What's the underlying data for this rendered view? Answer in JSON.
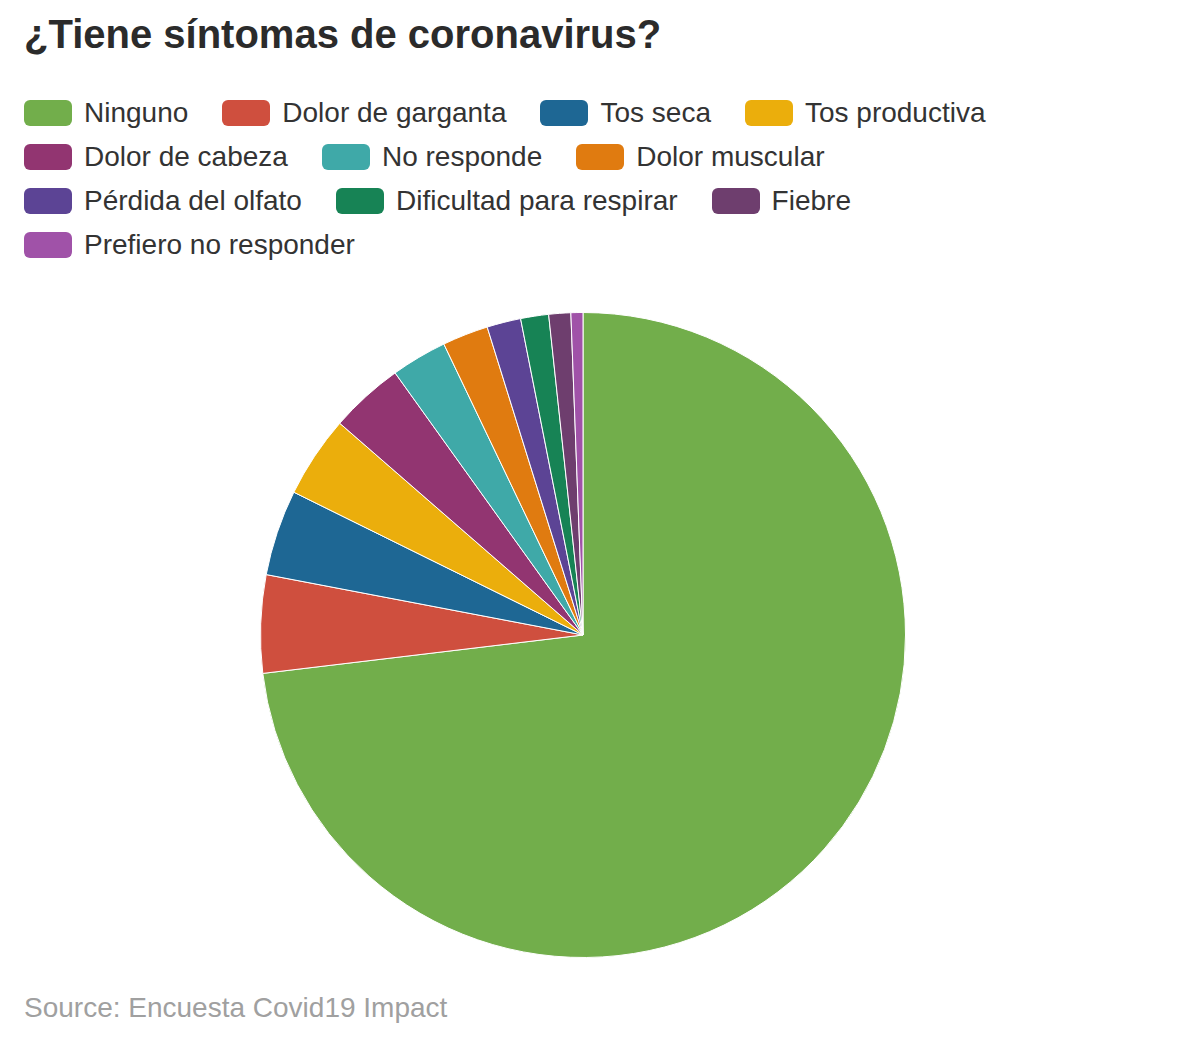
{
  "chart_data": {
    "type": "pie",
    "title": "¿Tiene síntomas de coronavirus?",
    "source": "Source: Encuesta Covid19 Impact",
    "categories": [
      "Ninguno",
      "Dolor de garganta",
      "Tos seca",
      "Tos productiva",
      "Dolor de cabeza",
      "No responde",
      "Dolor muscular",
      "Pérdida del olfato",
      "Dificultad para respirar",
      "Fiebre",
      "Prefiero no responder"
    ],
    "values": [
      73.1,
      4.9,
      4.3,
      4.1,
      3.7,
      2.8,
      2.3,
      1.7,
      1.4,
      1.1,
      0.6
    ],
    "colors": [
      "#72ae4b",
      "#cf4f3e",
      "#1e6794",
      "#ebae0c",
      "#923571",
      "#3fa9a8",
      "#e07b10",
      "#5c4495",
      "#178355",
      "#6e3e6e",
      "#a052a8"
    ],
    "legend": "top"
  }
}
